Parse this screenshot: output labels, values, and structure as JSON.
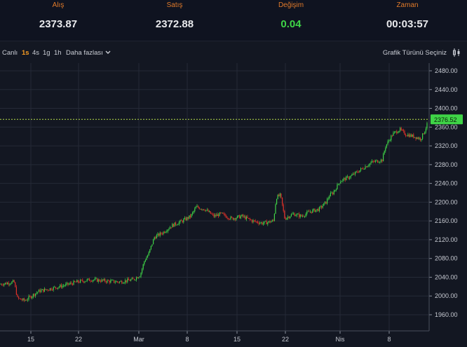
{
  "quote": {
    "bid_label": "Alış",
    "bid_value": "2373.87",
    "ask_label": "Satış",
    "ask_value": "2372.88",
    "change_label": "Değişim",
    "change_value": "0.04",
    "time_label": "Zaman",
    "time_value": "00:03:57"
  },
  "toolbar": {
    "live": "Canlı",
    "intervals": [
      "1s",
      "4s",
      "1g",
      "1h"
    ],
    "active_interval": "1s",
    "more": "Daha fazlası",
    "chart_type": "Grafik Türünü Seçiniz"
  },
  "colors": {
    "up": "#3fd447",
    "down": "#e0322a",
    "accent": "#f59b23",
    "grid": "#252a37",
    "price_line": "#b8e04a"
  },
  "chart_data": {
    "type": "candlestick",
    "y_ticks": [
      "1960.00",
      "2000.00",
      "2040.00",
      "2080.00",
      "2120.00",
      "2160.00",
      "2200.00",
      "2240.00",
      "2280.00",
      "2320.00",
      "2360.00",
      "2400.00",
      "2440.00",
      "2480.00"
    ],
    "x_ticks": [
      "15",
      "22",
      "Mar",
      "8",
      "15",
      "22",
      "Nis",
      "8"
    ],
    "ylim": [
      1940,
      2490
    ],
    "last_price": "2376.52",
    "last_price_value": 2376.52,
    "grid": true,
    "series_anchors": [
      [
        0,
        2025
      ],
      [
        20,
        2030
      ],
      [
        25,
        1995
      ],
      [
        35,
        1990
      ],
      [
        45,
        2000
      ],
      [
        55,
        2010
      ],
      [
        70,
        2015
      ],
      [
        90,
        2022
      ],
      [
        110,
        2030
      ],
      [
        130,
        2035
      ],
      [
        150,
        2032
      ],
      [
        170,
        2030
      ],
      [
        190,
        2035
      ],
      [
        200,
        2045
      ],
      [
        206,
        2075
      ],
      [
        212,
        2090
      ],
      [
        220,
        2125
      ],
      [
        232,
        2135
      ],
      [
        245,
        2150
      ],
      [
        260,
        2160
      ],
      [
        272,
        2170
      ],
      [
        280,
        2190
      ],
      [
        292,
        2185
      ],
      [
        305,
        2170
      ],
      [
        315,
        2175
      ],
      [
        330,
        2165
      ],
      [
        345,
        2170
      ],
      [
        360,
        2160
      ],
      [
        375,
        2155
      ],
      [
        390,
        2160
      ],
      [
        394,
        2210
      ],
      [
        400,
        2215
      ],
      [
        406,
        2165
      ],
      [
        418,
        2175
      ],
      [
        430,
        2170
      ],
      [
        442,
        2180
      ],
      [
        455,
        2185
      ],
      [
        465,
        2200
      ],
      [
        470,
        2215
      ],
      [
        475,
        2220
      ],
      [
        485,
        2245
      ],
      [
        500,
        2255
      ],
      [
        515,
        2270
      ],
      [
        530,
        2285
      ],
      [
        545,
        2290
      ],
      [
        550,
        2320
      ],
      [
        560,
        2345
      ],
      [
        570,
        2355
      ],
      [
        578,
        2345
      ],
      [
        590,
        2340
      ],
      [
        600,
        2335
      ],
      [
        605,
        2350
      ],
      [
        612,
        2376
      ]
    ]
  }
}
